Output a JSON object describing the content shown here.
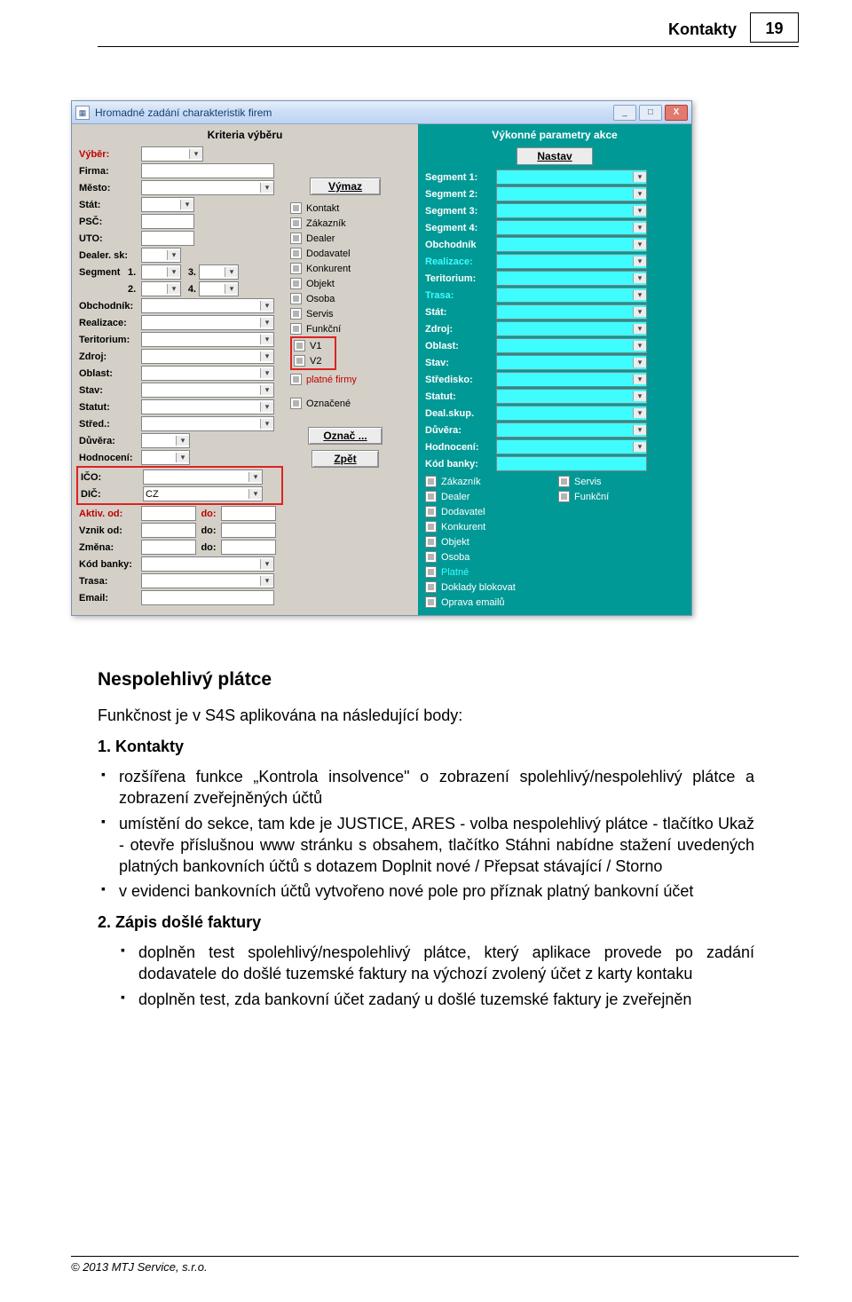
{
  "header": {
    "title": "Kontakty",
    "page": "19"
  },
  "window": {
    "title": "Hromadné zadání charakteristik firem",
    "btn_min": "_",
    "btn_max": "□",
    "btn_close": "X"
  },
  "left": {
    "panel_title": "Kriteria výběru",
    "vyber": "Výběr:",
    "firma": "Firma:",
    "mesto": "Město:",
    "stat": "Stát:",
    "psc": "PSČ:",
    "uto": "UTO:",
    "dealer_sk": "Dealer. sk:",
    "segment": "Segment",
    "s1": "1.",
    "s2": "2.",
    "s3": "3.",
    "s4": "4.",
    "obchodnik": "Obchodník:",
    "realizace": "Realizace:",
    "teritorium": "Teritorium:",
    "zdroj": "Zdroj:",
    "oblast": "Oblast:",
    "stav": "Stav:",
    "statut": "Statut:",
    "stred": "Střed.:",
    "duvera": "Důvěra:",
    "hodnoceni": "Hodnocení:",
    "ico": "IČO:",
    "dic": "DIČ:",
    "dic_val": "CZ",
    "aktiv_od": "Aktiv. od:",
    "vznik_od": "Vznik od:",
    "zmena": "Změna:",
    "do": "do:",
    "kod_banky": "Kód banky:",
    "trasa": "Trasa:",
    "email": "Email:",
    "vymaz_btn": "Výmaz",
    "oznac_btn": "Označ ...",
    "zpet_btn": "Zpět",
    "checks": [
      "Kontakt",
      "Zákazník",
      "Dealer",
      "Dodavatel",
      "Konkurent",
      "Objekt",
      "Osoba",
      "Servis",
      "Funkční"
    ],
    "checks2": [
      "V1",
      "V2"
    ],
    "platne_firmy": "platné firmy",
    "oznacene": "Označené"
  },
  "right": {
    "panel_title": "Výkonné parametry akce",
    "nastav": "Nastav",
    "rows": [
      {
        "l": "Segment 1:",
        "t": "dd"
      },
      {
        "l": "Segment 2:",
        "t": "dd"
      },
      {
        "l": "Segment 3:",
        "t": "dd"
      },
      {
        "l": "Segment 4:",
        "t": "dd"
      },
      {
        "l": "Obchodník",
        "t": "dd",
        "bold": true
      },
      {
        "l": "Realizace:",
        "t": "dd",
        "cyan": true
      },
      {
        "l": "Teritorium:",
        "t": "dd"
      },
      {
        "l": "Trasa:",
        "t": "dd",
        "cyan": true
      },
      {
        "l": "Stát:",
        "t": "dd"
      },
      {
        "l": "Zdroj:",
        "t": "dd"
      },
      {
        "l": "Oblast:",
        "t": "dd"
      },
      {
        "l": "Stav:",
        "t": "dd"
      },
      {
        "l": "Středisko:",
        "t": "dd"
      },
      {
        "l": "Statut:",
        "t": "dd"
      },
      {
        "l": "Deal.skup.",
        "t": "dd"
      },
      {
        "l": "Důvěra:",
        "t": "dd"
      },
      {
        "l": "Hodnocení:",
        "t": "dd"
      },
      {
        "l": "Kód banky:",
        "t": "in"
      }
    ],
    "checks_l": [
      "Zákazník",
      "Dealer",
      "Dodavatel",
      "Konkurent",
      "Objekt",
      "Osoba"
    ],
    "checks_r": [
      "Servis",
      "Funkční"
    ],
    "checks_cyan": [
      "Platné"
    ],
    "checks_extra": [
      "Doklady blokovat",
      "Oprava emailů"
    ]
  },
  "doc": {
    "h2": "Nespolehlivý plátce",
    "intro": "Funkčnost je v S4S aplikována na následující body:",
    "sec1_no": "1.",
    "sec1": "Kontakty",
    "sec2_no": "2.",
    "sec2": "Zápis došlé faktury",
    "b1": "rozšířena funkce „Kontrola insolvence\" o zobrazení spolehlivý/nespolehlivý plátce a zobrazení zveřejněných účtů",
    "b2": "umístění do sekce, tam kde je JUSTICE, ARES - volba nespolehlivý plátce - tlačítko Ukaž - otevře příslušnou www stránku s obsahem,  tlačítko Stáhni nabídne stažení uvedených platných bankovních účtů s dotazem Doplnit nové / Přepsat stávající / Storno",
    "b3": "v evidenci bankovních účtů vytvořeno nové pole pro příznak platný bankovní účet",
    "b4": "doplněn test spolehlivý/nespolehlivý plátce, který aplikace provede po zadání dodavatele do došlé tuzemské faktury na výchozí zvolený účet z karty kontaku",
    "b5": "doplněn test, zda bankovní účet zadaný u došlé tuzemské faktury je zveřejněn"
  },
  "footer": "© 2013 MTJ Service, s.r.o."
}
